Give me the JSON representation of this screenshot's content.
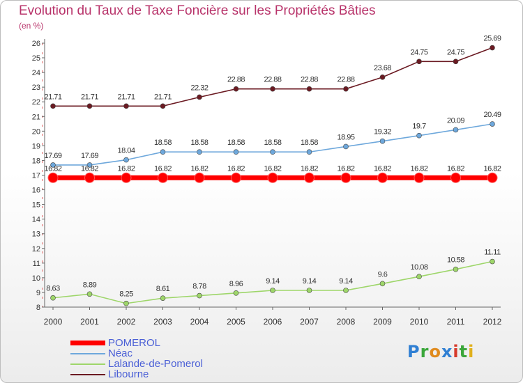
{
  "title": "Evolution du Taux de Taxe Foncière sur les Propriétés Bâties",
  "unit": "(en %)",
  "logo": {
    "letters": [
      {
        "ch": "P",
        "color": "#2f7fd3"
      },
      {
        "ch": "r",
        "color": "#3aa63a"
      },
      {
        "ch": "o",
        "color": "#e08a1c"
      },
      {
        "ch": "x",
        "color": "#2f7fd3"
      },
      {
        "ch": "i",
        "color": "#d63a2a"
      },
      {
        "ch": "t",
        "color": "#3aa63a"
      },
      {
        "ch": "i",
        "color": "#e0b01c"
      }
    ]
  },
  "chart_data": {
    "type": "line",
    "x": [
      "2000",
      "2001",
      "2002",
      "2003",
      "2004",
      "2005",
      "2006",
      "2007",
      "2008",
      "2009",
      "2010",
      "2011",
      "2012"
    ],
    "ylim": [
      8,
      26
    ],
    "yticks": [
      8,
      9,
      10,
      11,
      12,
      13,
      14,
      15,
      16,
      17,
      18,
      19,
      20,
      21,
      22,
      23,
      24,
      25,
      26
    ],
    "grid": false,
    "legend_position": "bottom-left",
    "series": [
      {
        "name": "Libourne",
        "color": "#6b1a22",
        "values": [
          21.71,
          21.71,
          21.71,
          21.71,
          22.32,
          22.88,
          22.88,
          22.88,
          22.88,
          23.68,
          24.75,
          24.75,
          25.69
        ],
        "labels": [
          "21.71",
          "21.71",
          "21.71",
          "21.71",
          "22.32",
          "22.88",
          "22.88",
          "22.88",
          "22.88",
          "23.68",
          "24.75",
          "24.75",
          "25.69"
        ]
      },
      {
        "name": "Néac",
        "color": "#6ea8dc",
        "values": [
          17.69,
          17.69,
          18.04,
          18.58,
          18.58,
          18.58,
          18.58,
          18.58,
          18.95,
          19.32,
          19.7,
          20.09,
          20.49
        ],
        "labels": [
          "17.69",
          "17.69",
          "18.04",
          "18.58",
          "18.58",
          "18.58",
          "18.58",
          "18.58",
          "18.95",
          "19.32",
          "19.7",
          "20.09",
          "20.49"
        ]
      },
      {
        "name": "POMEROL",
        "color": "#ff0000",
        "values": [
          16.82,
          16.82,
          16.82,
          16.82,
          16.82,
          16.82,
          16.82,
          16.82,
          16.82,
          16.82,
          16.82,
          16.82,
          16.82
        ],
        "labels": [
          "16.82",
          "16.82",
          "16.82",
          "16.82",
          "16.82",
          "16.82",
          "16.82",
          "16.82",
          "16.82",
          "16.82",
          "16.82",
          "16.82",
          "16.82"
        ]
      },
      {
        "name": "Lalande-de-Pomerol",
        "color": "#9ed66a",
        "values": [
          8.63,
          8.89,
          8.25,
          8.61,
          8.78,
          8.96,
          9.14,
          9.14,
          9.14,
          9.6,
          10.08,
          10.58,
          11.11
        ],
        "labels": [
          "8.63",
          "8.89",
          "8.25",
          "8.61",
          "8.78",
          "8.96",
          "9.14",
          "9.14",
          "9.14",
          "9.6",
          "10.08",
          "10.58",
          "11.11"
        ]
      }
    ],
    "legend": [
      {
        "name": "POMEROL",
        "color": "#ff0000"
      },
      {
        "name": "Néac",
        "color": "#6ea8dc"
      },
      {
        "name": "Lalande-de-Pomerol",
        "color": "#9ed66a"
      },
      {
        "name": "Libourne",
        "color": "#6b1a22"
      }
    ]
  }
}
